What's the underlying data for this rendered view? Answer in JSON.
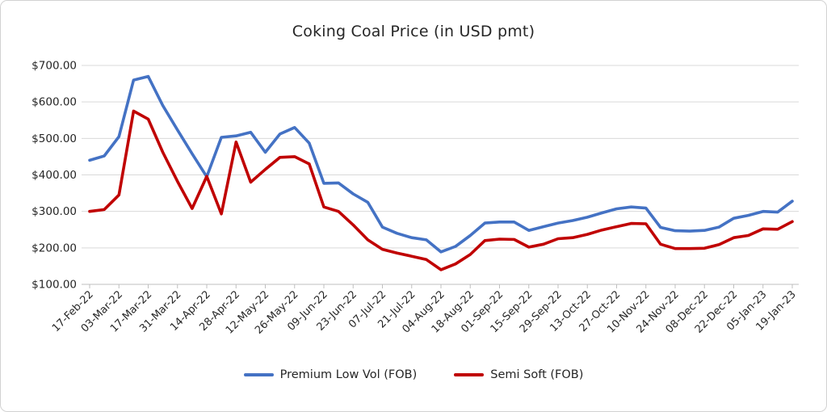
{
  "chart_data": {
    "type": "line",
    "title": "Coking Coal Price (in USD pmt)",
    "x": [
      "17-Feb-22",
      "24-Feb-22",
      "03-Mar-22",
      "10-Mar-22",
      "17-Mar-22",
      "24-Mar-22",
      "31-Mar-22",
      "07-Apr-22",
      "14-Apr-22",
      "21-Apr-22",
      "28-Apr-22",
      "05-May-22",
      "12-May-22",
      "19-May-22",
      "26-May-22",
      "02-Jun-22",
      "09-Jun-22",
      "16-Jun-22",
      "23-Jun-22",
      "30-Jun-22",
      "07-Jul-22",
      "14-Jul-22",
      "21-Jul-22",
      "28-Jul-22",
      "04-Aug-22",
      "11-Aug-22",
      "18-Aug-22",
      "25-Aug-22",
      "01-Sep-22",
      "08-Sep-22",
      "15-Sep-22",
      "22-Sep-22",
      "29-Sep-22",
      "06-Oct-22",
      "13-Oct-22",
      "20-Oct-22",
      "27-Oct-22",
      "03-Nov-22",
      "10-Nov-22",
      "17-Nov-22",
      "24-Nov-22",
      "01-Dec-22",
      "08-Dec-22",
      "15-Dec-22",
      "22-Dec-22",
      "29-Dec-22",
      "05-Jan-23",
      "12-Jan-23",
      "19-Jan-23"
    ],
    "x_tick_labels": [
      "17-Feb-22",
      "03-Mar-22",
      "17-Mar-22",
      "31-Mar-22",
      "14-Apr-22",
      "28-Apr-22",
      "12-May-22",
      "26-May-22",
      "09-Jun-22",
      "23-Jun-22",
      "07-Jul-22",
      "21-Jul-22",
      "04-Aug-22",
      "18-Aug-22",
      "01-Sep-22",
      "15-Sep-22",
      "29-Sep-22",
      "13-Oct-22",
      "27-Oct-22",
      "10-Nov-22",
      "24-Nov-22",
      "08-Dec-22",
      "22-Dec-22",
      "05-Jan-23",
      "19-Jan-23"
    ],
    "series": [
      {
        "name": "Premium Low Vol (FOB)",
        "color": "#4472C4",
        "values": [
          440,
          452,
          505,
          660,
          670,
          590,
          523,
          458,
          395,
          503,
          507,
          517,
          462,
          512,
          530,
          487,
          377,
          378,
          348,
          325,
          257,
          240,
          228,
          222,
          189,
          204,
          234,
          268,
          271,
          271,
          248,
          258,
          268,
          275,
          284,
          296,
          307,
          312,
          309,
          256,
          247,
          246,
          248,
          257,
          281,
          289,
          300,
          298,
          328
        ]
      },
      {
        "name": "Semi Soft (FOB)",
        "color": "#C00000",
        "values": [
          300,
          305,
          345,
          575,
          553,
          462,
          382,
          308,
          396,
          293,
          490,
          380,
          415,
          448,
          450,
          430,
          312,
          300,
          263,
          222,
          196,
          186,
          177,
          168,
          140,
          156,
          182,
          220,
          224,
          223,
          202,
          210,
          225,
          228,
          237,
          249,
          258,
          267,
          266,
          210,
          198,
          198,
          199,
          209,
          228,
          234,
          252,
          251,
          272
        ]
      }
    ],
    "xlabel": "",
    "ylabel": "",
    "y_ticks": [
      100,
      200,
      300,
      400,
      500,
      600,
      700
    ],
    "y_tick_labels": [
      "$100.00",
      "$200.00",
      "$300.00",
      "$400.00",
      "$500.00",
      "$600.00",
      "$700.00"
    ],
    "ylim": [
      100,
      700
    ],
    "grid": "horizontal-only",
    "legend_position": "bottom-center"
  },
  "colors": {
    "gridline": "#D9D9D9",
    "axis": "#BFBFBF",
    "tick_text": "#262626",
    "title_text": "#262626"
  }
}
